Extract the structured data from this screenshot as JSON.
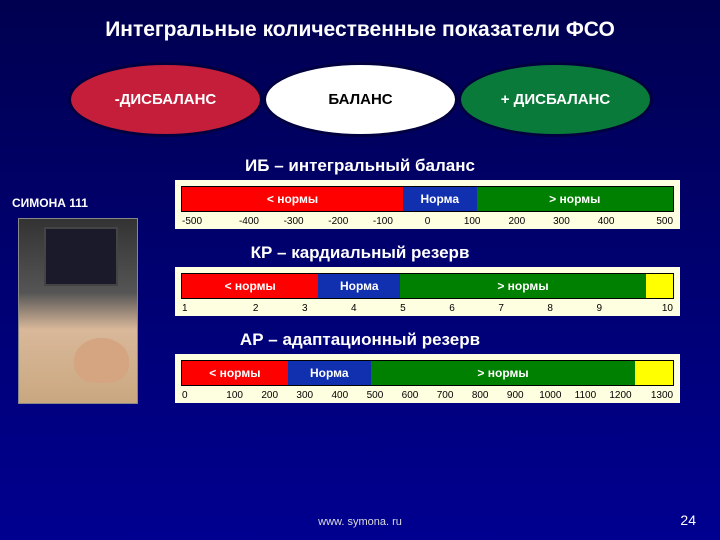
{
  "title": "Интегральные количественные показатели  ФСО",
  "ellipses": {
    "left": {
      "label": "-ДИСБАЛАНС",
      "bg": "#c41e3a",
      "fg": "#ffffff"
    },
    "mid": {
      "label": "БАЛАНС",
      "bg": "#ffffff",
      "fg": "#000000"
    },
    "right": {
      "label": "+ ДИСБАЛАНС",
      "bg": "#0a7a3a",
      "fg": "#ffffff"
    }
  },
  "side_label": "СИМОНА 111",
  "scales": [
    {
      "heading": "ИБ – интегральный баланс",
      "canvas_bg": "#fefee0",
      "segments": [
        {
          "label": "< нормы",
          "color": "#ff0000",
          "from": -500,
          "to": -50
        },
        {
          "label": "Норма",
          "color": "#1030b0",
          "from": -50,
          "to": 100
        },
        {
          "label": "> нормы",
          "color": "#008000",
          "from": 100,
          "to": 500
        }
      ],
      "range": {
        "min": -500,
        "max": 500,
        "step": 100
      },
      "ticks": [
        "-500",
        "-400",
        "-300",
        "-200",
        "-100",
        "0",
        "100",
        "200",
        "300",
        "400",
        "500"
      ]
    },
    {
      "heading": "КР – кардиальный резерв",
      "canvas_bg": "#fefee0",
      "segments": [
        {
          "label": "< нормы",
          "color": "#ff0000",
          "from": 1,
          "to": 3.5
        },
        {
          "label": "Норма",
          "color": "#1030b0",
          "from": 3.5,
          "to": 5
        },
        {
          "label": "> нормы",
          "color": "#008000",
          "from": 5,
          "to": 9.5
        },
        {
          "label": "",
          "color": "#ffff00",
          "from": 9.5,
          "to": 10
        }
      ],
      "range": {
        "min": 1,
        "max": 10,
        "step": 1
      },
      "ticks": [
        "1",
        "2",
        "3",
        "4",
        "5",
        "6",
        "7",
        "8",
        "9",
        "10"
      ]
    },
    {
      "heading": "АР – адаптационный резерв",
      "canvas_bg": "#fefee0",
      "segments": [
        {
          "label": "< нормы",
          "color": "#ff0000",
          "from": 0,
          "to": 280
        },
        {
          "label": "Норма",
          "color": "#1030b0",
          "from": 280,
          "to": 500
        },
        {
          "label": "> нормы",
          "color": "#008000",
          "from": 500,
          "to": 1200
        },
        {
          "label": "",
          "color": "#ffff00",
          "from": 1200,
          "to": 1300
        }
      ],
      "range": {
        "min": 0,
        "max": 1300,
        "step": 100
      },
      "ticks": [
        "0",
        "100",
        "200",
        "300",
        "400",
        "500",
        "600",
        "700",
        "800",
        "900",
        "1000",
        "1100",
        "1200",
        "1300"
      ]
    }
  ],
  "footer": {
    "url": "www. symona. ru",
    "page": "24"
  },
  "typography": {
    "title_fontsize": 21,
    "label_fontsize": 17,
    "tick_fontsize": 10
  },
  "colors": {
    "page_bg_top": "#000050",
    "page_bg_bottom": "#000090",
    "text": "#ffffff",
    "ellipse_border": "#000040"
  }
}
